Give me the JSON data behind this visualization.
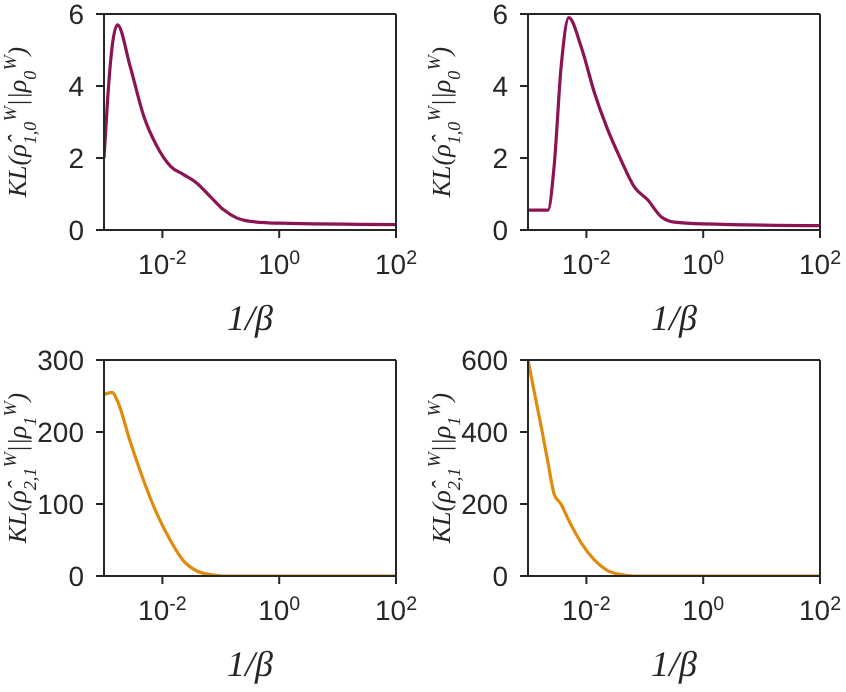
{
  "chart_data": [
    {
      "type": "line",
      "xlabel": "1/β",
      "ylabel": "KL(ρ̂$_{1,0}$$^{W}$||ρ$_{0}$$^{W}$)",
      "color": "#8c1453",
      "log": "x",
      "xlim": [
        0.001,
        100
      ],
      "xticks": [
        {
          "value": 0.01,
          "label": "10$^{-2}$"
        },
        {
          "value": 1,
          "label": "10$^{0}$"
        },
        {
          "value": 100,
          "label": "10$^{2}$"
        }
      ],
      "ylim": [
        0,
        6
      ],
      "yticks": [
        0,
        2,
        4,
        6
      ],
      "x": [
        0.001,
        0.00115,
        0.00138,
        0.0017,
        0.0028,
        0.0048,
        0.0081,
        0.0138,
        0.023,
        0.039,
        0.066,
        0.112,
        0.19,
        0.32,
        1,
        100
      ],
      "values": [
        2.0,
        3.6,
        5.1,
        5.7,
        4.55,
        3.16,
        2.32,
        1.77,
        1.54,
        1.3,
        0.93,
        0.56,
        0.33,
        0.24,
        0.19,
        0.15
      ]
    },
    {
      "type": "line",
      "xlabel": "1/β",
      "ylabel": "KL(ρ̂$_{1,0}$$^{W}$||ρ$_{0}$$^{W}$)",
      "color": "#8c1453",
      "log": "x",
      "xlim": [
        0.001,
        100
      ],
      "xticks": [
        {
          "value": 0.01,
          "label": "10$^{-2}$"
        },
        {
          "value": 1,
          "label": "10$^{0}$"
        },
        {
          "value": 100,
          "label": "10$^{2}$"
        }
      ],
      "ylim": [
        0,
        6
      ],
      "yticks": [
        0,
        2,
        4,
        6
      ],
      "x": [
        0.001,
        0.0022,
        0.0028,
        0.0037,
        0.005,
        0.0081,
        0.0138,
        0.023,
        0.039,
        0.066,
        0.112,
        0.19,
        0.32,
        1,
        100
      ],
      "values": [
        0.55,
        0.55,
        1.77,
        4.55,
        5.9,
        5.1,
        3.8,
        2.8,
        1.95,
        1.2,
        0.84,
        0.37,
        0.22,
        0.17,
        0.12
      ]
    },
    {
      "type": "line",
      "xlabel": "1/β",
      "ylabel": "KL(ρ̂$_{2,1}$$^{W}$||ρ$_{1}$$^{W}$)",
      "color": "#e08b0e",
      "log": "x",
      "xlim": [
        0.001,
        100
      ],
      "xticks": [
        {
          "value": 0.01,
          "label": "10$^{-2}$"
        },
        {
          "value": 1,
          "label": "10$^{0}$"
        },
        {
          "value": 100,
          "label": "10$^{2}$"
        }
      ],
      "ylim": [
        0,
        300
      ],
      "yticks": [
        0,
        100,
        200,
        300
      ],
      "x": [
        0.001,
        0.00138,
        0.0017,
        0.0028,
        0.0048,
        0.0081,
        0.0138,
        0.023,
        0.039,
        0.066,
        0.112,
        100
      ],
      "values": [
        252,
        255,
        243,
        187,
        132,
        86,
        49,
        21,
        7,
        2,
        0,
        0
      ]
    },
    {
      "type": "line",
      "xlabel": "1/β",
      "ylabel": "KL(ρ̂$_{2,1}$$^{W}$||ρ$_{1}$$^{W}$)",
      "color": "#e08b0e",
      "log": "x",
      "xlim": [
        0.001,
        100
      ],
      "xticks": [
        {
          "value": 0.01,
          "label": "10$^{-2}$"
        },
        {
          "value": 1,
          "label": "10$^{0}$"
        },
        {
          "value": 100,
          "label": "10$^{2}$"
        }
      ],
      "ylim": [
        0,
        600
      ],
      "yticks": [
        0,
        200,
        400,
        600
      ],
      "x": [
        0.001,
        0.00129,
        0.0017,
        0.0022,
        0.0028,
        0.0037,
        0.0048,
        0.0081,
        0.0138,
        0.023,
        0.039,
        0.066,
        100
      ],
      "values": [
        600,
        508,
        411,
        315,
        228,
        199,
        160,
        93,
        44,
        15,
        4,
        0,
        0
      ]
    }
  ]
}
